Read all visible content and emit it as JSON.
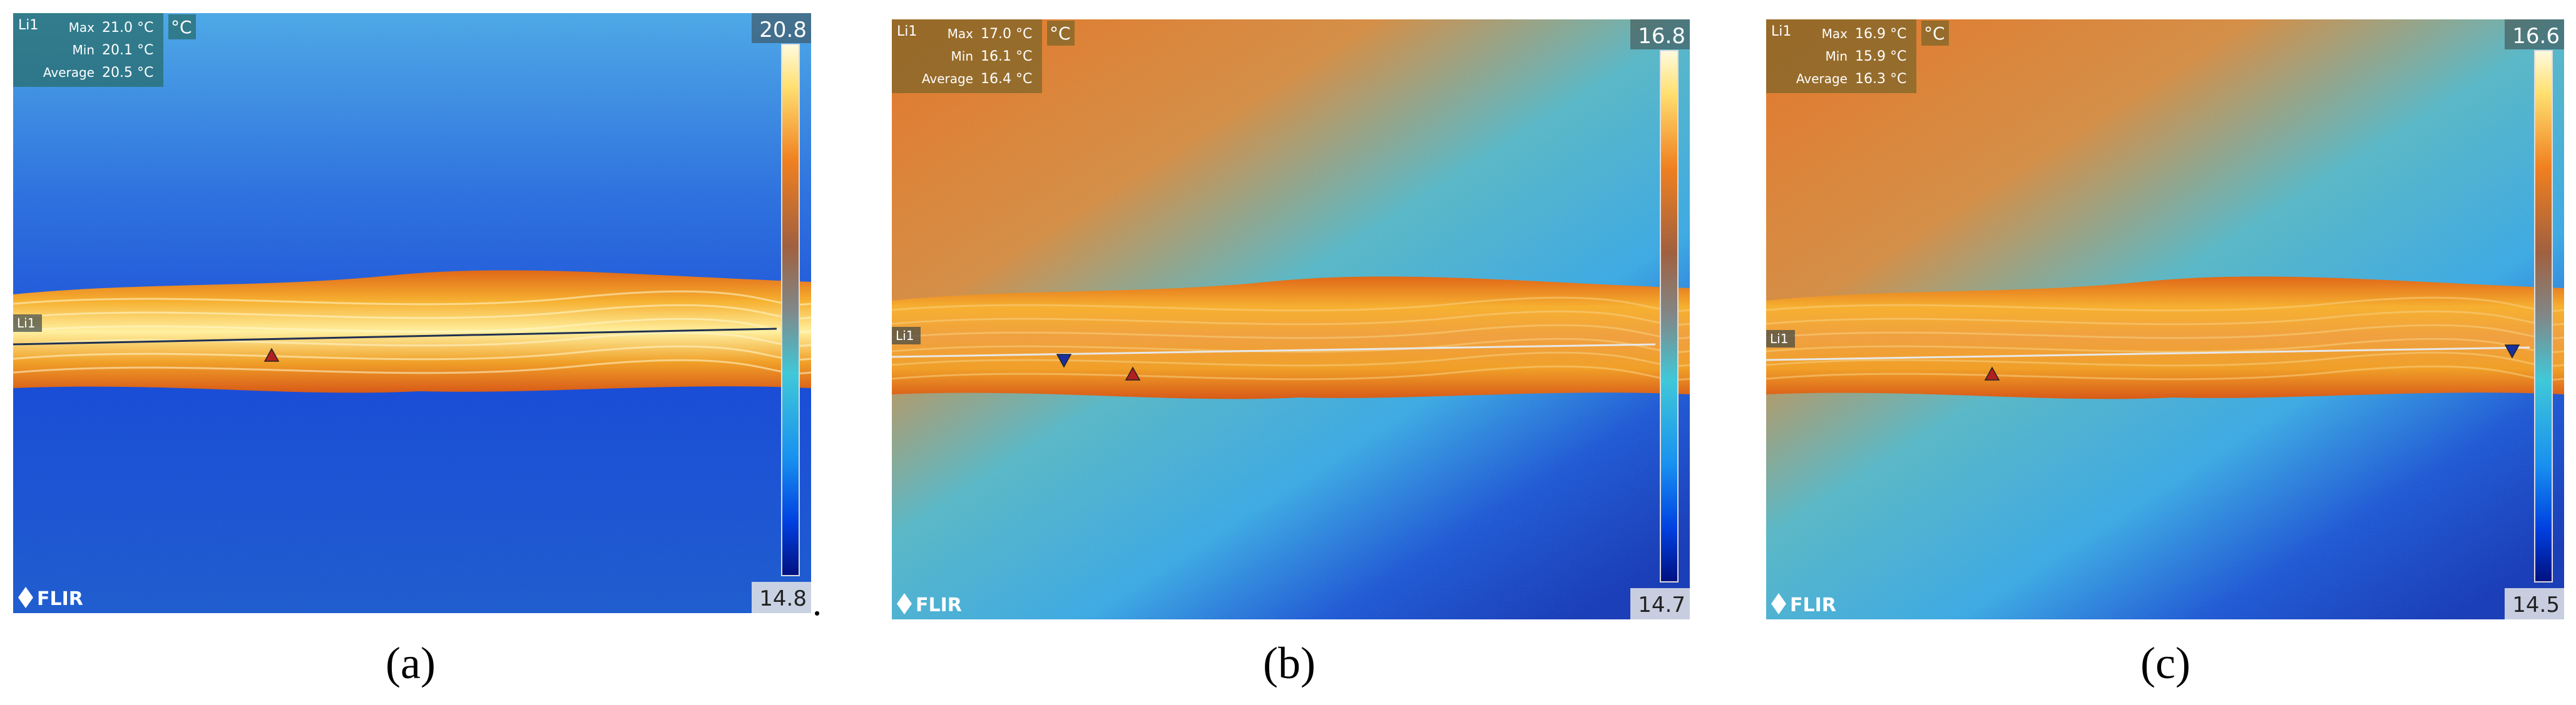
{
  "panels": [
    {
      "caption": "(a)",
      "box_title": "Li1",
      "stats": [
        {
          "label": "Max",
          "value": "21.0 °C"
        },
        {
          "label": "Min",
          "value": "20.1 °C"
        },
        {
          "label": "Average",
          "value": "20.5 °C"
        }
      ],
      "unit": "°C",
      "scale_max": "20.8",
      "scale_min": "14.8",
      "line_label": "Li1",
      "logo": "FLIR"
    },
    {
      "caption": "(b)",
      "box_title": "Li1",
      "stats": [
        {
          "label": "Max",
          "value": "17.0 °C"
        },
        {
          "label": "Min",
          "value": "16.1 °C"
        },
        {
          "label": "Average",
          "value": "16.4 °C"
        }
      ],
      "unit": "°C",
      "scale_max": "16.8",
      "scale_min": "14.7",
      "line_label": "Li1",
      "logo": "FLIR"
    },
    {
      "caption": "(c)",
      "box_title": "Li1",
      "stats": [
        {
          "label": "Max",
          "value": "16.9 °C"
        },
        {
          "label": "Min",
          "value": "15.9 °C"
        },
        {
          "label": "Average",
          "value": "16.3 °C"
        }
      ],
      "unit": "°C",
      "scale_max": "16.6",
      "scale_min": "14.5",
      "line_label": "Li1",
      "logo": "FLIR"
    }
  ],
  "trailing_mark": "."
}
